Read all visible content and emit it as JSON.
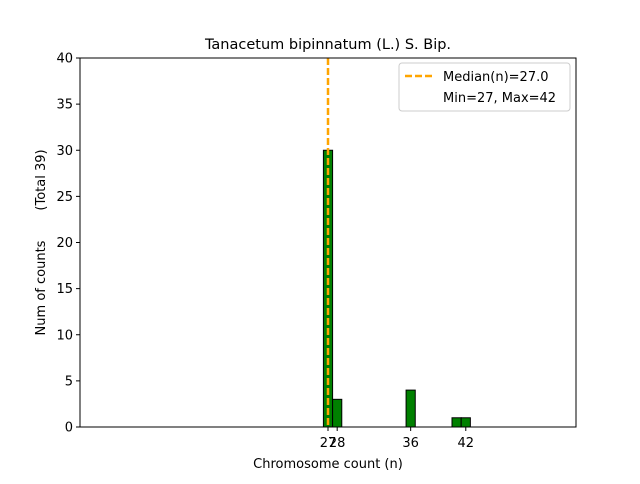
{
  "chart_data": {
    "type": "bar",
    "title": "Tanacetum bipinnatum (L.) S. Bip.",
    "xlabel": "Chromosome count (n)",
    "ylabel": "Num of counts",
    "ylabel_total": "(Total 39)",
    "xlim": [
      0,
      54
    ],
    "ylim": [
      0,
      40
    ],
    "yticks": [
      0,
      5,
      10,
      15,
      20,
      25,
      30,
      35,
      40
    ],
    "xticks": [
      27,
      28,
      36,
      42
    ],
    "bar_width": 1,
    "bars": [
      {
        "x": 27,
        "value": 30
      },
      {
        "x": 28,
        "value": 3
      },
      {
        "x": 36,
        "value": 4
      },
      {
        "x": 41,
        "value": 1
      },
      {
        "x": 42,
        "value": 1
      }
    ],
    "median": 27.0,
    "min": 27,
    "max": 42,
    "legend": {
      "position": "top-right",
      "median_label": "Median(n)=27.0",
      "range_label": "Min=27, Max=42"
    },
    "colors": {
      "bar_fill": "#008000",
      "bar_edge": "#000000",
      "median_line": "#FFA500"
    }
  }
}
